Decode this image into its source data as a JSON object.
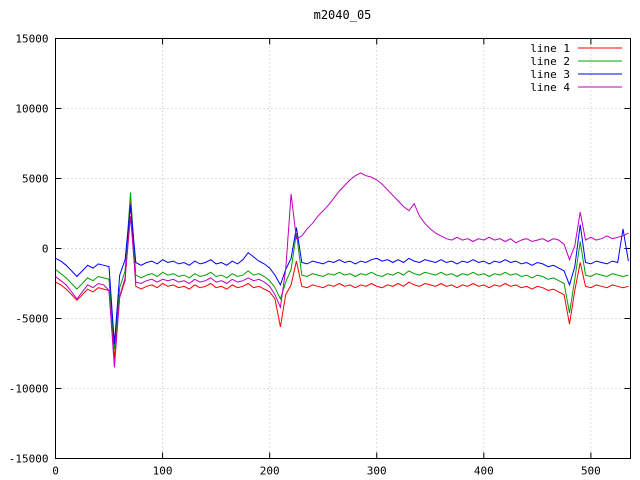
{
  "chart_data": {
    "type": "line",
    "title": "m2040_05",
    "xlabel": "",
    "ylabel": "",
    "xlim": [
      0,
      537
    ],
    "ylim": [
      -15000,
      15000
    ],
    "xticks": [
      0,
      100,
      200,
      300,
      400,
      500
    ],
    "yticks": [
      -15000,
      -10000,
      -5000,
      0,
      5000,
      10000,
      15000
    ],
    "grid": "dotted",
    "legend_position": "top-right",
    "x_start": 0,
    "x_step": 5,
    "series": [
      {
        "name": "line 1",
        "color": "#ff0000",
        "values": [
          -2400,
          -2600,
          -2900,
          -3300,
          -3700,
          -3300,
          -2900,
          -3100,
          -2800,
          -2900,
          -3000,
          -7900,
          -3500,
          -2300,
          3300,
          -2700,
          -2900,
          -2700,
          -2600,
          -2800,
          -2500,
          -2700,
          -2600,
          -2800,
          -2700,
          -2900,
          -2600,
          -2800,
          -2700,
          -2500,
          -2800,
          -2700,
          -2900,
          -2600,
          -2800,
          -2700,
          -2500,
          -2800,
          -2700,
          -2900,
          -3100,
          -3600,
          -5600,
          -3300,
          -2600,
          -900,
          -2700,
          -2800,
          -2600,
          -2700,
          -2800,
          -2600,
          -2700,
          -2500,
          -2700,
          -2600,
          -2800,
          -2600,
          -2700,
          -2500,
          -2700,
          -2800,
          -2600,
          -2700,
          -2500,
          -2700,
          -2400,
          -2600,
          -2700,
          -2500,
          -2600,
          -2700,
          -2500,
          -2700,
          -2600,
          -2800,
          -2600,
          -2700,
          -2500,
          -2700,
          -2600,
          -2800,
          -2600,
          -2700,
          -2500,
          -2700,
          -2600,
          -2800,
          -2700,
          -2900,
          -2700,
          -2800,
          -3000,
          -2900,
          -3100,
          -3300,
          -5400,
          -3000,
          -1000,
          -2700,
          -2800,
          -2600,
          -2700,
          -2800,
          -2600,
          -2700,
          -2800,
          -2700
        ]
      },
      {
        "name": "line 2",
        "color": "#00a000",
        "values": [
          -1500,
          -1800,
          -2100,
          -2500,
          -2900,
          -2500,
          -2100,
          -2300,
          -2000,
          -2100,
          -2200,
          -7200,
          -2800,
          -1600,
          4000,
          -1900,
          -2100,
          -1900,
          -1800,
          -2000,
          -1700,
          -1900,
          -1800,
          -2000,
          -1900,
          -2100,
          -1800,
          -2000,
          -1900,
          -1700,
          -2000,
          -1900,
          -2100,
          -1800,
          -2000,
          -1900,
          -1600,
          -1900,
          -1800,
          -2000,
          -2300,
          -2800,
          -3600,
          -2400,
          -1500,
          1100,
          -1900,
          -2000,
          -1800,
          -1900,
          -2000,
          -1800,
          -1900,
          -1700,
          -1900,
          -1800,
          -2000,
          -1800,
          -1900,
          -1700,
          -1900,
          -2000,
          -1800,
          -1900,
          -1700,
          -1900,
          -1600,
          -1800,
          -1900,
          -1700,
          -1800,
          -1900,
          -1700,
          -1900,
          -1800,
          -2000,
          -1800,
          -1900,
          -1700,
          -1900,
          -1800,
          -2000,
          -1800,
          -1900,
          -1700,
          -1900,
          -1800,
          -2000,
          -1900,
          -2100,
          -1900,
          -2000,
          -2200,
          -2100,
          -2300,
          -2500,
          -4600,
          -2200,
          500,
          -1900,
          -2000,
          -1800,
          -1900,
          -2000,
          -1800,
          -1900,
          -2000,
          -1900
        ]
      },
      {
        "name": "line 3",
        "color": "#0000ff",
        "values": [
          -700,
          -900,
          -1200,
          -1600,
          -2000,
          -1600,
          -1200,
          -1400,
          -1100,
          -1200,
          -1300,
          -6800,
          -1900,
          -800,
          3100,
          -1000,
          -1200,
          -1000,
          -900,
          -1100,
          -800,
          -1000,
          -900,
          -1100,
          -1000,
          -1200,
          -900,
          -1100,
          -1000,
          -800,
          -1100,
          -1000,
          -1200,
          -900,
          -1100,
          -800,
          -300,
          -600,
          -900,
          -1100,
          -1400,
          -1900,
          -2600,
          -1500,
          -700,
          1500,
          -1000,
          -1100,
          -900,
          -1000,
          -1100,
          -900,
          -1000,
          -800,
          -1000,
          -900,
          -1100,
          -900,
          -1000,
          -800,
          -700,
          -900,
          -800,
          -1000,
          -800,
          -1000,
          -700,
          -900,
          -1000,
          -800,
          -900,
          -1000,
          -800,
          -1000,
          -900,
          -1100,
          -900,
          -1000,
          -800,
          -1000,
          -900,
          -1100,
          -900,
          -1000,
          -800,
          -1000,
          -900,
          -1100,
          -1000,
          -1200,
          -1000,
          -1100,
          -1300,
          -1200,
          -1400,
          -1600,
          -2600,
          -1300,
          1700,
          -1000,
          -1100,
          -900,
          -1000,
          -1100,
          -900,
          -1000,
          1400,
          -900
        ]
      },
      {
        "name": "line 4",
        "color": "#bf00bf",
        "values": [
          -2000,
          -2300,
          -2600,
          -3100,
          -3600,
          -3100,
          -2600,
          -2800,
          -2500,
          -2600,
          -3000,
          -8500,
          -3400,
          -2100,
          2300,
          -2400,
          -2500,
          -2300,
          -2200,
          -2400,
          -2200,
          -2300,
          -2200,
          -2400,
          -2300,
          -2500,
          -2200,
          -2400,
          -2300,
          -2100,
          -2400,
          -2300,
          -2500,
          -2200,
          -2400,
          -2300,
          -2100,
          -2300,
          -2200,
          -2400,
          -2700,
          -3300,
          -4200,
          -1500,
          3900,
          700,
          900,
          1400,
          1800,
          2300,
          2700,
          3100,
          3600,
          4100,
          4500,
          4900,
          5200,
          5400,
          5200,
          5100,
          4900,
          4600,
          4200,
          3800,
          3400,
          3000,
          2700,
          3200,
          2300,
          1800,
          1400,
          1100,
          900,
          700,
          600,
          800,
          600,
          700,
          500,
          700,
          600,
          800,
          600,
          700,
          500,
          700,
          400,
          600,
          700,
          500,
          600,
          700,
          500,
          700,
          600,
          300,
          -800,
          200,
          2600,
          600,
          800,
          600,
          700,
          900,
          700,
          800,
          900,
          1100
        ]
      }
    ]
  }
}
